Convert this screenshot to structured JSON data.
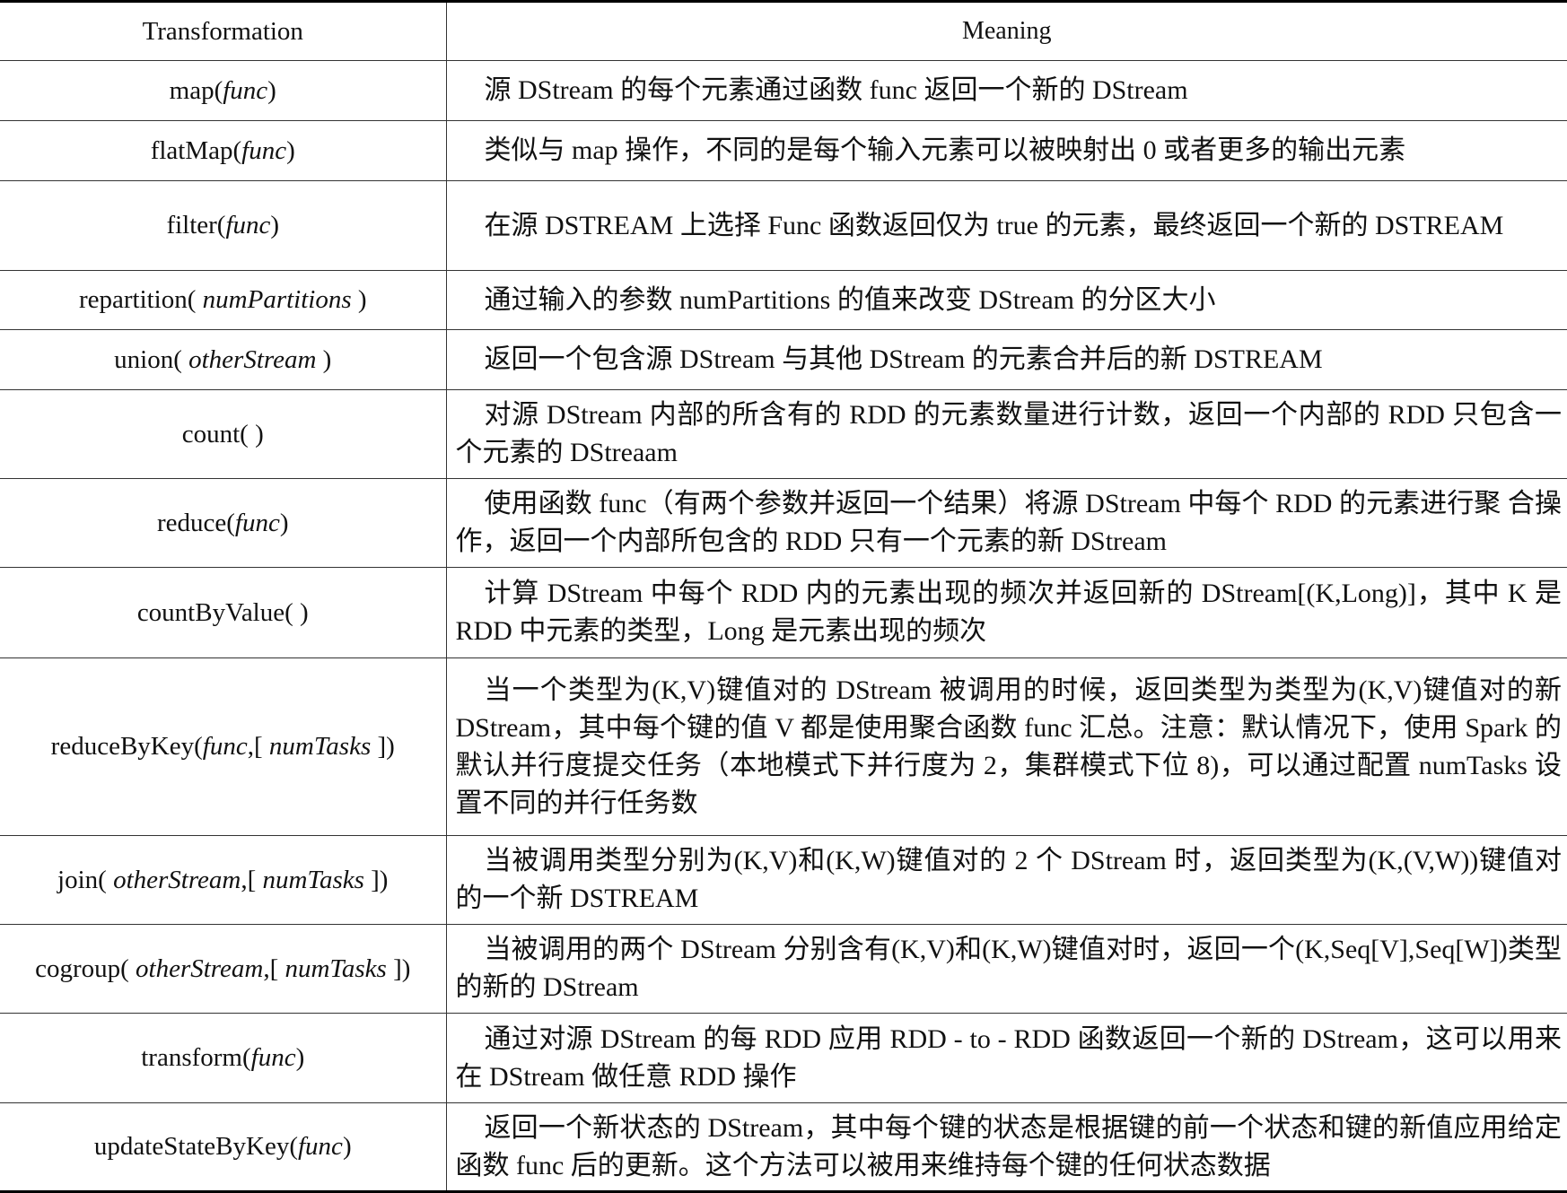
{
  "headers": {
    "transformation": "Transformation",
    "meaning": "Meaning"
  },
  "rows": [
    {
      "parts": [
        {
          "t": "map(",
          "i": false
        },
        {
          "t": "func",
          "i": true
        },
        {
          "t": ")",
          "i": false
        }
      ],
      "meaning": "源 DStream 的每个元素通过函数 func 返回一个新的 DStream"
    },
    {
      "parts": [
        {
          "t": "flatMap(",
          "i": false
        },
        {
          "t": "func",
          "i": true
        },
        {
          "t": ")",
          "i": false
        }
      ],
      "meaning": "类似与 map 操作，不同的是每个输入元素可以被映射出 0 或者更多的输出元素"
    },
    {
      "parts": [
        {
          "t": "filter(",
          "i": false
        },
        {
          "t": "func",
          "i": true
        },
        {
          "t": ")",
          "i": false
        }
      ],
      "meaning": "在源 DSTREAM 上选择 Func 函数返回仅为 true 的元素，最终返回一个新的 DSTREAM"
    },
    {
      "parts": [
        {
          "t": "repartition( ",
          "i": false
        },
        {
          "t": "numPartitions",
          "i": true
        },
        {
          "t": " )",
          "i": false
        }
      ],
      "meaning": "通过输入的参数 numPartitions 的值来改变 DStream 的分区大小"
    },
    {
      "parts": [
        {
          "t": "union( ",
          "i": false
        },
        {
          "t": "otherStream",
          "i": true
        },
        {
          "t": " )",
          "i": false
        }
      ],
      "meaning": "返回一个包含源 DStream 与其他 DStream 的元素合并后的新 DSTREAM"
    },
    {
      "parts": [
        {
          "t": "count( )",
          "i": false
        }
      ],
      "meaning": "对源 DStream 内部的所含有的 RDD 的元素数量进行计数，返回一个内部的 RDD 只包含一个元素的 DStreaam"
    },
    {
      "parts": [
        {
          "t": "reduce(",
          "i": false
        },
        {
          "t": "func",
          "i": true
        },
        {
          "t": ")",
          "i": false
        }
      ],
      "meaning": "使用函数 func（有两个参数并返回一个结果）将源 DStream 中每个 RDD 的元素进行聚 合操作，返回一个内部所包含的 RDD 只有一个元素的新 DStream"
    },
    {
      "parts": [
        {
          "t": "countByValue( )",
          "i": false
        }
      ],
      "meaning": "计算 DStream 中每个 RDD 内的元素出现的频次并返回新的 DStream[(K,Long)]，其中 K 是 RDD 中元素的类型，Long 是元素出现的频次"
    },
    {
      "parts": [
        {
          "t": "reduceByKey(",
          "i": false
        },
        {
          "t": "func",
          "i": true
        },
        {
          "t": ",[ ",
          "i": false
        },
        {
          "t": "numTasks",
          "i": true
        },
        {
          "t": " ])",
          "i": false
        }
      ],
      "meaning": "当一个类型为(K,V)键值对的 DStream 被调用的时候，返回类型为类型为(K,V)键值对的新 DStream，其中每个键的值 V 都是使用聚合函数 func 汇总。注意：默认情况下，使用 Spark 的默认并行度提交任务（本地模式下并行度为 2，集群模式下位 8)，可以通过配置 numTasks 设置不同的并行任务数"
    },
    {
      "parts": [
        {
          "t": "join( ",
          "i": false
        },
        {
          "t": "otherStream",
          "i": true
        },
        {
          "t": ",[ ",
          "i": false
        },
        {
          "t": "numTasks",
          "i": true
        },
        {
          "t": " ])",
          "i": false
        }
      ],
      "meaning": "当被调用类型分别为(K,V)和(K,W)键值对的 2 个 DStream 时，返回类型为(K,(V,W))键值对的一个新 DSTREAM"
    },
    {
      "parts": [
        {
          "t": "cogroup( ",
          "i": false
        },
        {
          "t": "otherStream",
          "i": true
        },
        {
          "t": ",[ ",
          "i": false
        },
        {
          "t": "numTasks",
          "i": true
        },
        {
          "t": " ])",
          "i": false
        }
      ],
      "meaning": "当被调用的两个 DStream 分别含有(K,V)和(K,W)键值对时，返回一个(K,Seq[V],Seq[W])类型的新的 DStream"
    },
    {
      "parts": [
        {
          "t": "transform(",
          "i": false
        },
        {
          "t": "func",
          "i": true
        },
        {
          "t": ")",
          "i": false
        }
      ],
      "meaning": "通过对源 DStream 的每 RDD 应用 RDD - to - RDD 函数返回一个新的 DStream，这可以用来在 DStream 做任意 RDD 操作"
    },
    {
      "parts": [
        {
          "t": "updateStateByKey(",
          "i": false
        },
        {
          "t": "func",
          "i": true
        },
        {
          "t": ")",
          "i": false
        }
      ],
      "meaning": "返回一个新状态的 DStream，其中每个键的状态是根据键的前一个状态和键的新值应用给定函数 func 后的更新。这个方法可以被用来维持每个键的任何状态数据"
    }
  ]
}
